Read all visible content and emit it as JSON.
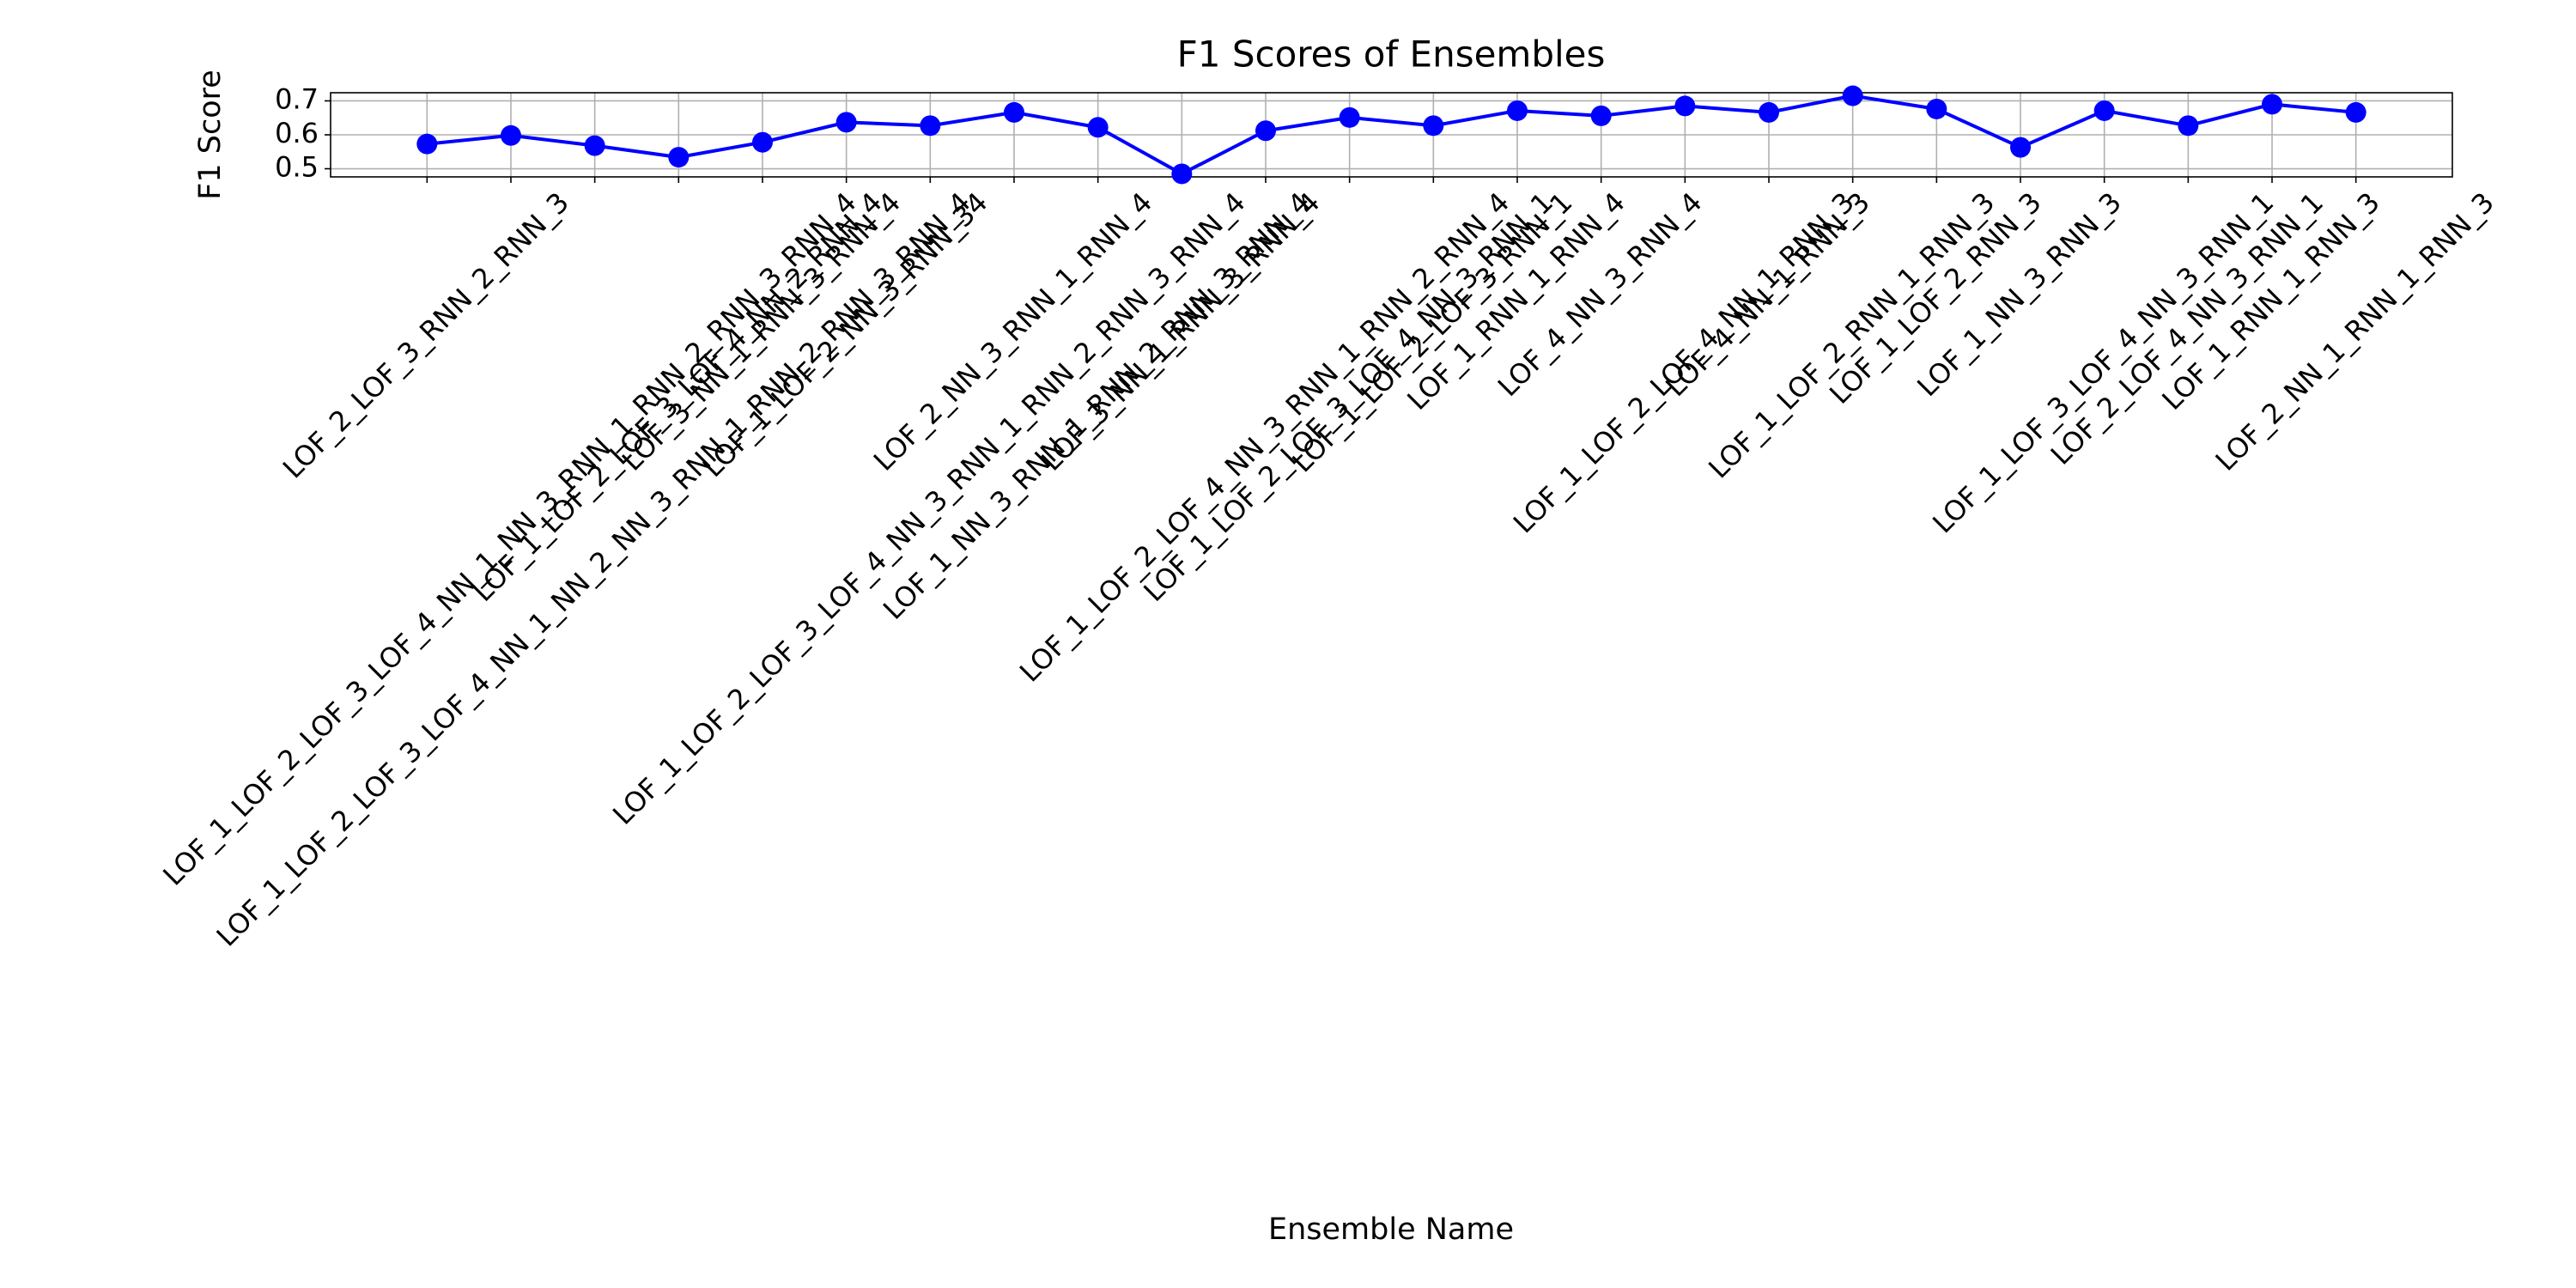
{
  "chart_data": {
    "type": "line",
    "title": "F1 Scores of Ensembles",
    "x_label": "Ensemble Name",
    "y_label": "F1 Score",
    "categories": [
      "LOF_2_LOF_3_RNN_2_RNN_3",
      "LOF_1_LOF_2_LOF_3_LOF_4_NN_1_NN_3_RNN_1_RNN_2_RNN_3_RNN_4",
      "LOF_1_LOF_2_LOF_3_LOF_4_NN_1_NN_2_NN_3_RNN_1_RNN_2_RNN_3_RNN_4",
      "LOF_1_LOF_2_LOF_3_LOF_4_NN_2_RNN_4",
      "LOF_3_NN_1_RNN_3_RNN_4",
      "LOF_1_LOF_2_NN_3_RNN_34",
      "LOF_1_LOF_2_LOF_3_LOF_4_NN_3_RNN_1_RNN_2_RNN_3_RNN_4",
      "LOF_2_NN_3_RNN_1_RNN_4",
      "LOF_1_NN_3_RNN_1_RNN_2_RNN_3_RNN_4",
      "LOF_3_NN_1_RNN_3_RNN_4",
      "LOF_1_LOF_2_LOF_4_NN_3_RNN_1_RNN_2_RNN_4",
      "LOF_1_LOF_2_LOF_3_LOF_4_NN_3_RNN_1",
      "LOF_1_LOF_2_LOF_3_RNN_1",
      "LOF_1_RNN_1_RNN_4",
      "LOF_4_NN_3_RNN_4",
      "LOF_1_LOF_2_LOF_4_NN_1_RNN_3",
      "LOF_4_NN_1_RNN_3",
      "LOF_1_LOF_2_RNN_1_RNN_3",
      "LOF_1_LOF_2_RNN_3",
      "LOF_1_NN_3_RNN_3",
      "LOF_1_LOF_3_LOF_4_NN_3_RNN_1",
      "LOF_2_LOF_4_NN_3_RNN_1",
      "LOF_1_RNN_1_RNN_3",
      "LOF_2_NN_1_RNN_1_RNN_3"
    ],
    "series": [
      {
        "name": "F1 Score",
        "color": "#0000ff",
        "values": [
          0.573,
          0.598,
          0.568,
          0.534,
          0.578,
          0.637,
          0.627,
          0.666,
          0.622,
          0.485,
          0.612,
          0.651,
          0.627,
          0.671,
          0.656,
          0.685,
          0.666,
          0.715,
          0.676,
          0.563,
          0.671,
          0.627,
          0.69,
          0.666
        ]
      }
    ],
    "ylim": [
      0.476,
      0.724
    ],
    "yticks": [
      0.5,
      0.6,
      0.7
    ],
    "grid": true
  }
}
